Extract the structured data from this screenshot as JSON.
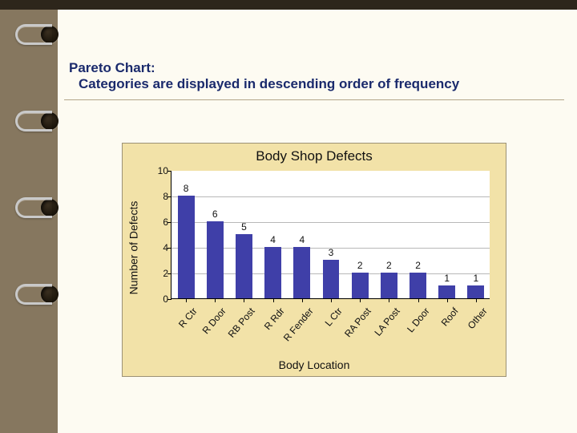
{
  "colors": {
    "outer_bg": "#86775f",
    "top_edge": "#2d261b",
    "page_bg": "#fdfbf2",
    "heading": "#1a2a6c",
    "chart_bg": "#f2e2a8",
    "chart_border": "#9c9275",
    "plot_bg": "#ffffff",
    "axis": "#000000",
    "grid": "#b8b8b8",
    "bar": "#3f3fa8",
    "text": "#111111"
  },
  "heading": {
    "line1": "Pareto Chart:",
    "line2": "Categories are displayed in descending order of frequency"
  },
  "chart": {
    "type": "bar",
    "title": "Body Shop Defects",
    "xlabel": "Body Location",
    "ylabel": "Number of Defects",
    "ylim": [
      0,
      10
    ],
    "ytick_step": 2,
    "bar_width_ratio": 0.58,
    "categories": [
      "R Ctr",
      "R Door",
      "RB Post",
      "R Rdr",
      "R Fender",
      "L Ctr",
      "RA Post",
      "LA Post",
      "L Door",
      "Roof",
      "Other"
    ],
    "values": [
      8,
      6,
      5,
      4,
      4,
      3,
      2,
      2,
      2,
      1,
      1
    ],
    "value_label_fontsize": 12,
    "axis_label_fontsize": 14,
    "title_fontsize": 17,
    "tick_fontsize": 12,
    "xtick_rotation_deg": -50
  }
}
